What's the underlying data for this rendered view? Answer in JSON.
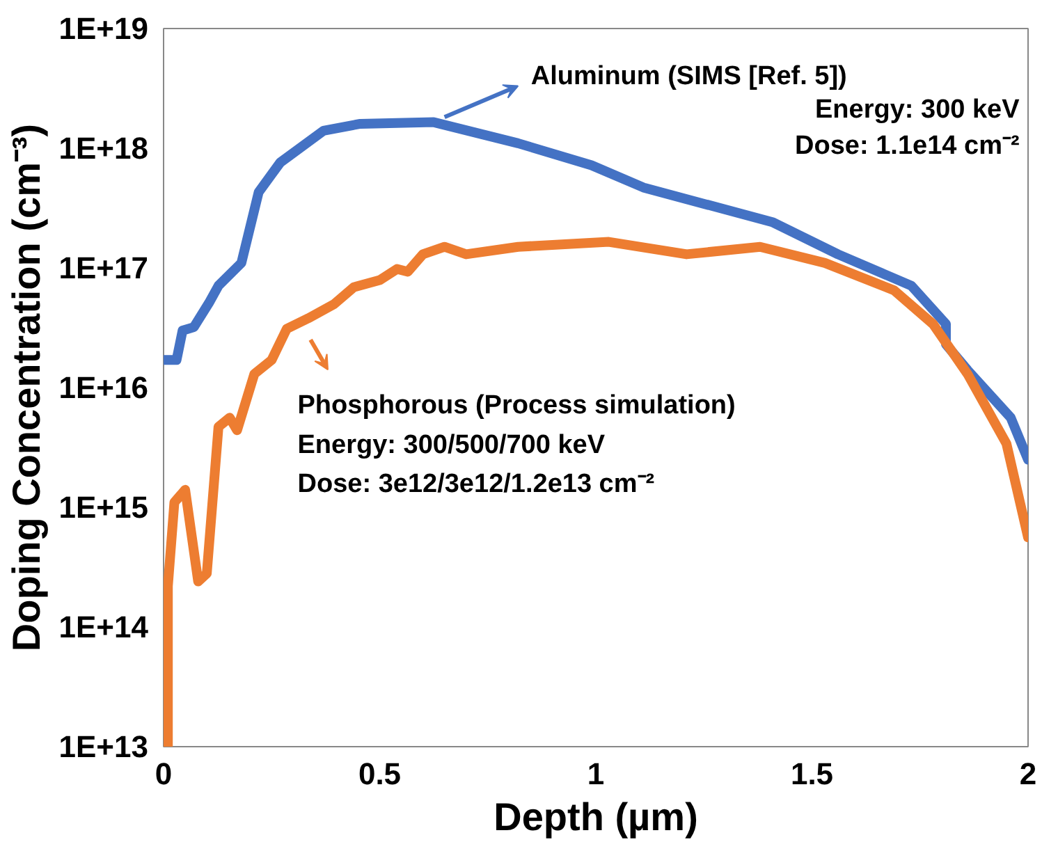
{
  "chart_data": {
    "type": "line",
    "xlabel": "Depth (µm)",
    "ylabel": "Doping Concentration (cm⁻³)",
    "log": "y",
    "grid": false,
    "marker": "none",
    "line_style": "solid",
    "xlim": [
      0,
      2
    ],
    "xticks": [
      0,
      0.5,
      1,
      1.5,
      2
    ],
    "ylim": [
      10000000000000.0,
      1e+19
    ],
    "yticks": [
      {
        "value": 10000000000000.0,
        "label": "1E+13"
      },
      {
        "value": 100000000000000.0,
        "label": "1E+14"
      },
      {
        "value": 1000000000000000.0,
        "label": "1E+15"
      },
      {
        "value": 1e+16,
        "label": "1E+16"
      },
      {
        "value": 1e+17,
        "label": "1E+17"
      },
      {
        "value": 1e+18,
        "label": "1E+18"
      },
      {
        "value": 1e+19,
        "label": "1E+19"
      }
    ],
    "series": [
      {
        "color": "#4472c4",
        "x": [
          0,
          0.03,
          0.044,
          0.07,
          0.105,
          0.127,
          0.18,
          0.22,
          0.27,
          0.37,
          0.455,
          0.625,
          0.82,
          0.99,
          1.11,
          1.41,
          1.56,
          1.73,
          1.81,
          1.81,
          1.86,
          1.96,
          2.0
        ],
        "values": [
          1.7e+16,
          1.7e+16,
          3e+16,
          3.2e+16,
          5.1e+16,
          7.1e+16,
          1.1e+17,
          4.3e+17,
          7.6e+17,
          1.4e+18,
          1.6e+18,
          1.65e+18,
          1.1e+18,
          7.2e+17,
          4.7e+17,
          2.4e+17,
          1.3e+17,
          7.1e+16,
          3.4e+16,
          2.3e+16,
          1.4e+16,
          5600000000000000.0,
          2500000000000000.0
        ]
      },
      {
        "color": "#ed7d31",
        "x": [
          0.01,
          0.01,
          0.025,
          0.05,
          0.08,
          0.1,
          0.127,
          0.153,
          0.17,
          0.21,
          0.25,
          0.285,
          0.335,
          0.395,
          0.44,
          0.5,
          0.54,
          0.565,
          0.6,
          0.65,
          0.7,
          0.82,
          1.03,
          1.21,
          1.38,
          1.53,
          1.69,
          1.78,
          1.86,
          1.95,
          2.0
        ],
        "values": [
          10000000000000.0,
          220000000000000.0,
          1100000000000000.0,
          1400000000000000.0,
          240000000000000.0,
          280000000000000.0,
          4700000000000000.0,
          5600000000000000.0,
          4400000000000000.0,
          1.3e+16,
          1.7e+16,
          3.1e+16,
          3.8e+16,
          5e+16,
          6.9e+16,
          7.9e+16,
          9.8e+16,
          9.3e+16,
          1.3e+17,
          1.5e+17,
          1.3e+17,
          1.5e+17,
          1.65e+17,
          1.3e+17,
          1.5e+17,
          1.1e+17,
          6.5e+16,
          3.4e+16,
          1.3e+16,
          3400000000000000.0,
          560000000000000.0
        ]
      }
    ],
    "annotations": [
      "Aluminum (SIMS [Ref. 5])",
      "Energy: 300 keV",
      "Dose: 1.1e14 cm⁻²",
      "Phosphorous (Process simulation)",
      "Energy: 300/500/700 keV",
      "Dose: 3e12/3e12/1.2e13 cm⁻²"
    ]
  }
}
